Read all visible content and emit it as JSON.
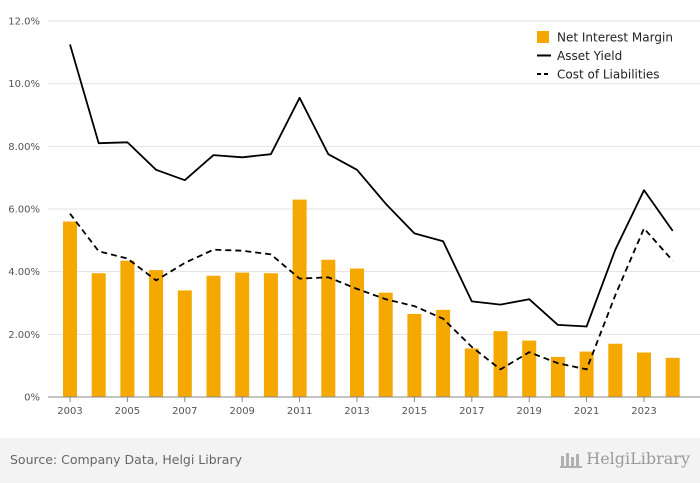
{
  "chart_data": {
    "type": "bar",
    "x_tick_labels": [
      "2003",
      "2005",
      "2007",
      "2009",
      "2011",
      "2013",
      "2015",
      "2017",
      "2019",
      "2021",
      "2023"
    ],
    "years": [
      2003,
      2004,
      2005,
      2006,
      2007,
      2008,
      2009,
      2010,
      2011,
      2012,
      2013,
      2014,
      2015,
      2016,
      2017,
      2018,
      2019,
      2020,
      2021,
      2022,
      2023,
      2024
    ],
    "y_tick_labels": [
      "0%",
      "2.00%",
      "4.00%",
      "6.00%",
      "8.00%",
      "10.0%",
      "12.0%"
    ],
    "y_ticks": [
      0,
      2,
      4,
      6,
      8,
      10,
      12
    ],
    "ylim": [
      0,
      12
    ],
    "grid": true,
    "legend_position": "top-right",
    "series": [
      {
        "name": "Net Interest Margin",
        "kind": "bar",
        "color": "#f5a800",
        "values": [
          5.6,
          3.95,
          4.35,
          4.05,
          3.4,
          3.87,
          3.97,
          3.95,
          6.3,
          4.38,
          4.1,
          3.33,
          2.65,
          2.78,
          1.55,
          2.1,
          1.8,
          1.28,
          1.45,
          1.7,
          1.42,
          1.25
        ]
      },
      {
        "name": "Asset Yield",
        "kind": "line",
        "color": "#000000",
        "dash": "solid",
        "values": [
          11.25,
          8.1,
          8.13,
          7.25,
          6.92,
          7.72,
          7.65,
          7.75,
          9.55,
          7.75,
          7.25,
          6.17,
          5.22,
          4.97,
          3.05,
          2.95,
          3.12,
          2.3,
          2.25,
          4.7,
          6.6,
          5.3
        ]
      },
      {
        "name": "Cost of Liabilities",
        "kind": "line",
        "color": "#000000",
        "dash": "dashed",
        "values": [
          5.85,
          4.65,
          4.42,
          3.72,
          4.28,
          4.7,
          4.67,
          4.55,
          3.78,
          3.82,
          3.45,
          3.12,
          2.9,
          2.5,
          1.6,
          0.88,
          1.43,
          1.08,
          0.88,
          3.25,
          5.38,
          4.35
        ]
      }
    ]
  },
  "footer": {
    "source": "Source: Company Data, Helgi Library",
    "brand": "HelgiLibrary"
  },
  "colors": {
    "grid": "#e2e2e2",
    "footer_bg": "#f3f3f3"
  }
}
